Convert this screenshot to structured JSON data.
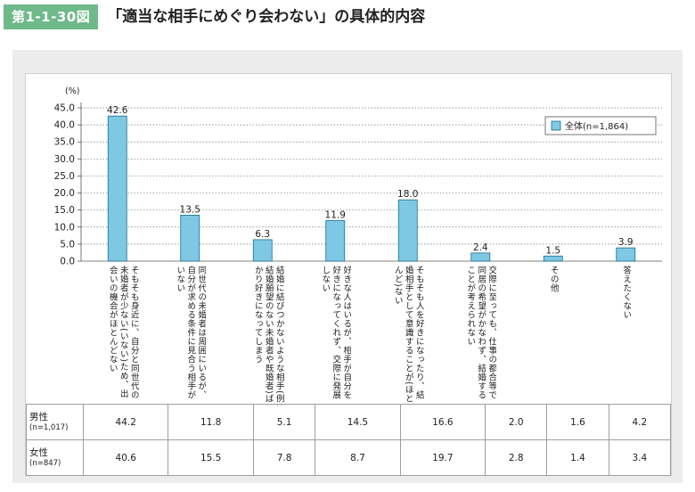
{
  "figure": {
    "number": "第1-1-30図",
    "title": "「適当な相手にめぐり会わない」の具体的内容"
  },
  "chart_data": {
    "type": "bar",
    "ylabel": "(%)",
    "ylim": [
      0,
      45
    ],
    "yticks": [
      "0.0",
      "5.0",
      "10.0",
      "15.0",
      "20.0",
      "25.0",
      "30.0",
      "35.0",
      "40.0",
      "45.0"
    ],
    "grid": true,
    "legend_position": "top-right",
    "bar_color": "#7ec8e3",
    "series": [
      {
        "name": "全体(n=1,864)",
        "values": [
          42.6,
          13.5,
          6.3,
          11.9,
          18.0,
          2.4,
          1.5,
          3.9
        ],
        "labels": [
          "42.6",
          "13.5",
          "6.3",
          "11.9",
          "18.0",
          "2.4",
          "1.5",
          "3.9"
        ]
      }
    ],
    "categories": [
      "そもそも身近に、自分と同世代の未婚者が少ない(いない)ため、出会いの機会がほとんどない",
      "同世代の未婚者は周囲にいるが、自分が求める条件に見合う相手がいない",
      "結婚に結びつかないような相手(例:結婚願望のない未婚者や既婚者)ばかり好きになってしまう",
      "好きな人はいるが、相手が自分を好きになってくれず、交際に発展しない",
      "そもそも人を好きになったり、結婚相手として意識することが(ほとんど)ない",
      "交際に至っても、仕事の都合等で同居の希望がかなわず、結婚することが考えられない",
      "その他",
      "答えたくない"
    ]
  },
  "table": {
    "rows": [
      {
        "label": "男性",
        "n": "(n=1,017)",
        "values": [
          "44.2",
          "11.8",
          "5.1",
          "14.5",
          "16.6",
          "2.0",
          "1.6",
          "4.2"
        ]
      },
      {
        "label": "女性",
        "n": "(n=847)",
        "values": [
          "40.6",
          "15.5",
          "7.8",
          "8.7",
          "19.7",
          "2.8",
          "1.4",
          "3.4"
        ]
      }
    ]
  }
}
